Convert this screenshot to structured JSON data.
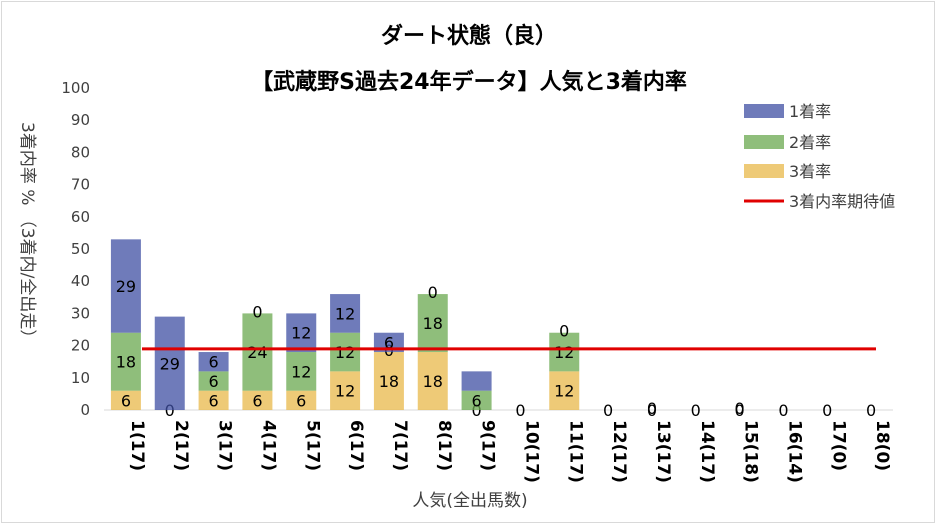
{
  "chart_data": {
    "type": "bar",
    "stacked": true,
    "title": "ダート状態（良）",
    "subtitle": "【武蔵野S過去24年データ】人気と3着内率",
    "xlabel": "人気(全出馬数)",
    "ylabel": "3着内率 % （3着内/全出走）",
    "ylim": [
      0,
      100
    ],
    "yticks": [
      "0",
      "10",
      "20",
      "30",
      "40",
      "50",
      "60",
      "70",
      "80",
      "90",
      "100"
    ],
    "categories": [
      "1(17)",
      "2(17)",
      "3(17)",
      "4(17)",
      "5(17)",
      "6(17)",
      "7(17)",
      "8(17)",
      "9(17)",
      "10(17)",
      "11(17)",
      "12(17)",
      "13(17)",
      "14(17)",
      "15(18)",
      "16(14)",
      "17(0)",
      "18(0)"
    ],
    "series": [
      {
        "name": "3着率",
        "color": "#e8b84a",
        "values": [
          6,
          0,
          6,
          6,
          6,
          12,
          18,
          18,
          0,
          0,
          12,
          0,
          0,
          0,
          0,
          0,
          0,
          0
        ],
        "labels": [
          "6",
          "0",
          "6",
          "6",
          "6",
          "12",
          "18",
          "18",
          "0",
          "0",
          "12",
          "0",
          "0",
          "0",
          "0",
          "0",
          "0",
          "0"
        ]
      },
      {
        "name": "2着率",
        "color": "#6aa84f",
        "values": [
          18,
          0,
          6,
          24,
          12,
          12,
          0,
          18,
          6,
          0,
          12,
          0,
          0,
          0,
          0,
          0,
          0,
          0
        ],
        "labels": [
          "18",
          "",
          "6",
          "24",
          "12",
          "12",
          "0",
          "18",
          "6",
          "",
          "12",
          "",
          "",
          "",
          "",
          "",
          "",
          ""
        ]
      },
      {
        "name": "1着率",
        "color": "#3f4fa3",
        "values": [
          29,
          29,
          6,
          0,
          12,
          12,
          6,
          0,
          6,
          0,
          0,
          0,
          0,
          0,
          0,
          0,
          0,
          0
        ],
        "labels": [
          "29",
          "29",
          "6",
          "0",
          "12",
          "12",
          "6",
          "0",
          "",
          "",
          "0",
          "",
          "0",
          "",
          "0",
          "",
          "",
          ""
        ]
      }
    ],
    "expected_line": {
      "name": "3着内率期待値",
      "color": "#e00000",
      "value": 19
    },
    "legend": [
      "1着率",
      "2着率",
      "3着率",
      "3着内率期待値"
    ],
    "legend_position": "top-right",
    "grid": false
  }
}
